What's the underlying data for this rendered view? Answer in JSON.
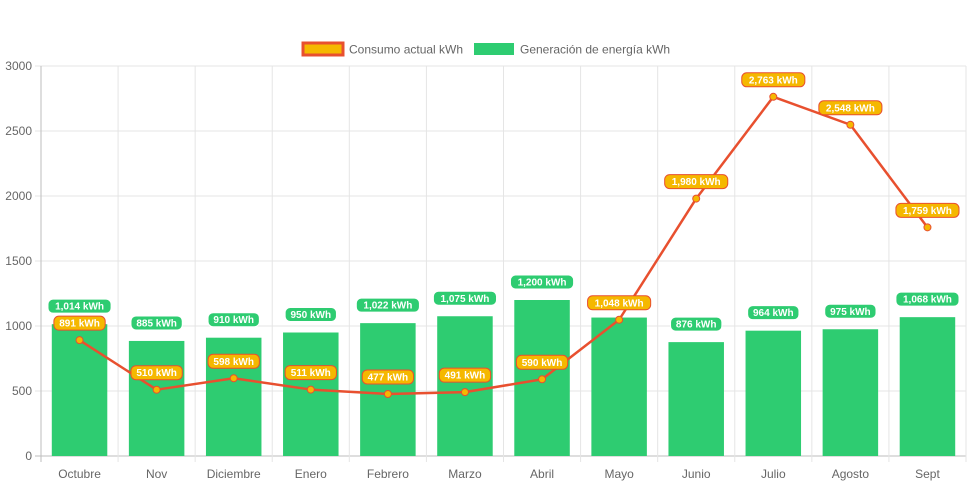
{
  "chart_data": {
    "type": "bar",
    "categories": [
      "Octubre",
      "Nov",
      "Diciembre",
      "Enero",
      "Febrero",
      "Marzo",
      "Abril",
      "Mayo",
      "Junio",
      "Julio",
      "Agosto",
      "Sept"
    ],
    "series": [
      {
        "name": "Consumo actual kWh",
        "type": "line",
        "values": [
          891,
          510,
          598,
          511,
          477,
          491,
          590,
          1048,
          1980,
          2763,
          2548,
          1759
        ],
        "labels": [
          "891 kWh",
          "510 kWh",
          "598 kWh",
          "511 kWh",
          "477 kWh",
          "491 kWh",
          "590 kWh",
          "1,048 kWh",
          "1,980 kWh",
          "2,763 kWh",
          "2,548 kWh",
          "1,759 kWh"
        ],
        "color": "#e8502f",
        "label_color": "#f5b800"
      },
      {
        "name": "Generación de energía kWh",
        "type": "bar",
        "values": [
          1014,
          885,
          910,
          950,
          1022,
          1075,
          1200,
          1065,
          876,
          964,
          975,
          1068
        ],
        "labels": [
          "1,014 kWh",
          "885 kWh",
          "910 kWh",
          "950 kWh",
          "1,022 kWh",
          "1,075 kWh",
          "1,200 kWh",
          "",
          "876 kWh",
          "964 kWh",
          "975 kWh",
          "1,068 kWh"
        ],
        "color": "#2ecc71"
      }
    ],
    "yticks": [
      "0",
      "500",
      "1000",
      "1500",
      "2000",
      "2500",
      "3000"
    ],
    "ylim": [
      0,
      3000
    ],
    "grid": true,
    "legend": "top-center",
    "title": "",
    "xlabel": "",
    "ylabel": ""
  }
}
